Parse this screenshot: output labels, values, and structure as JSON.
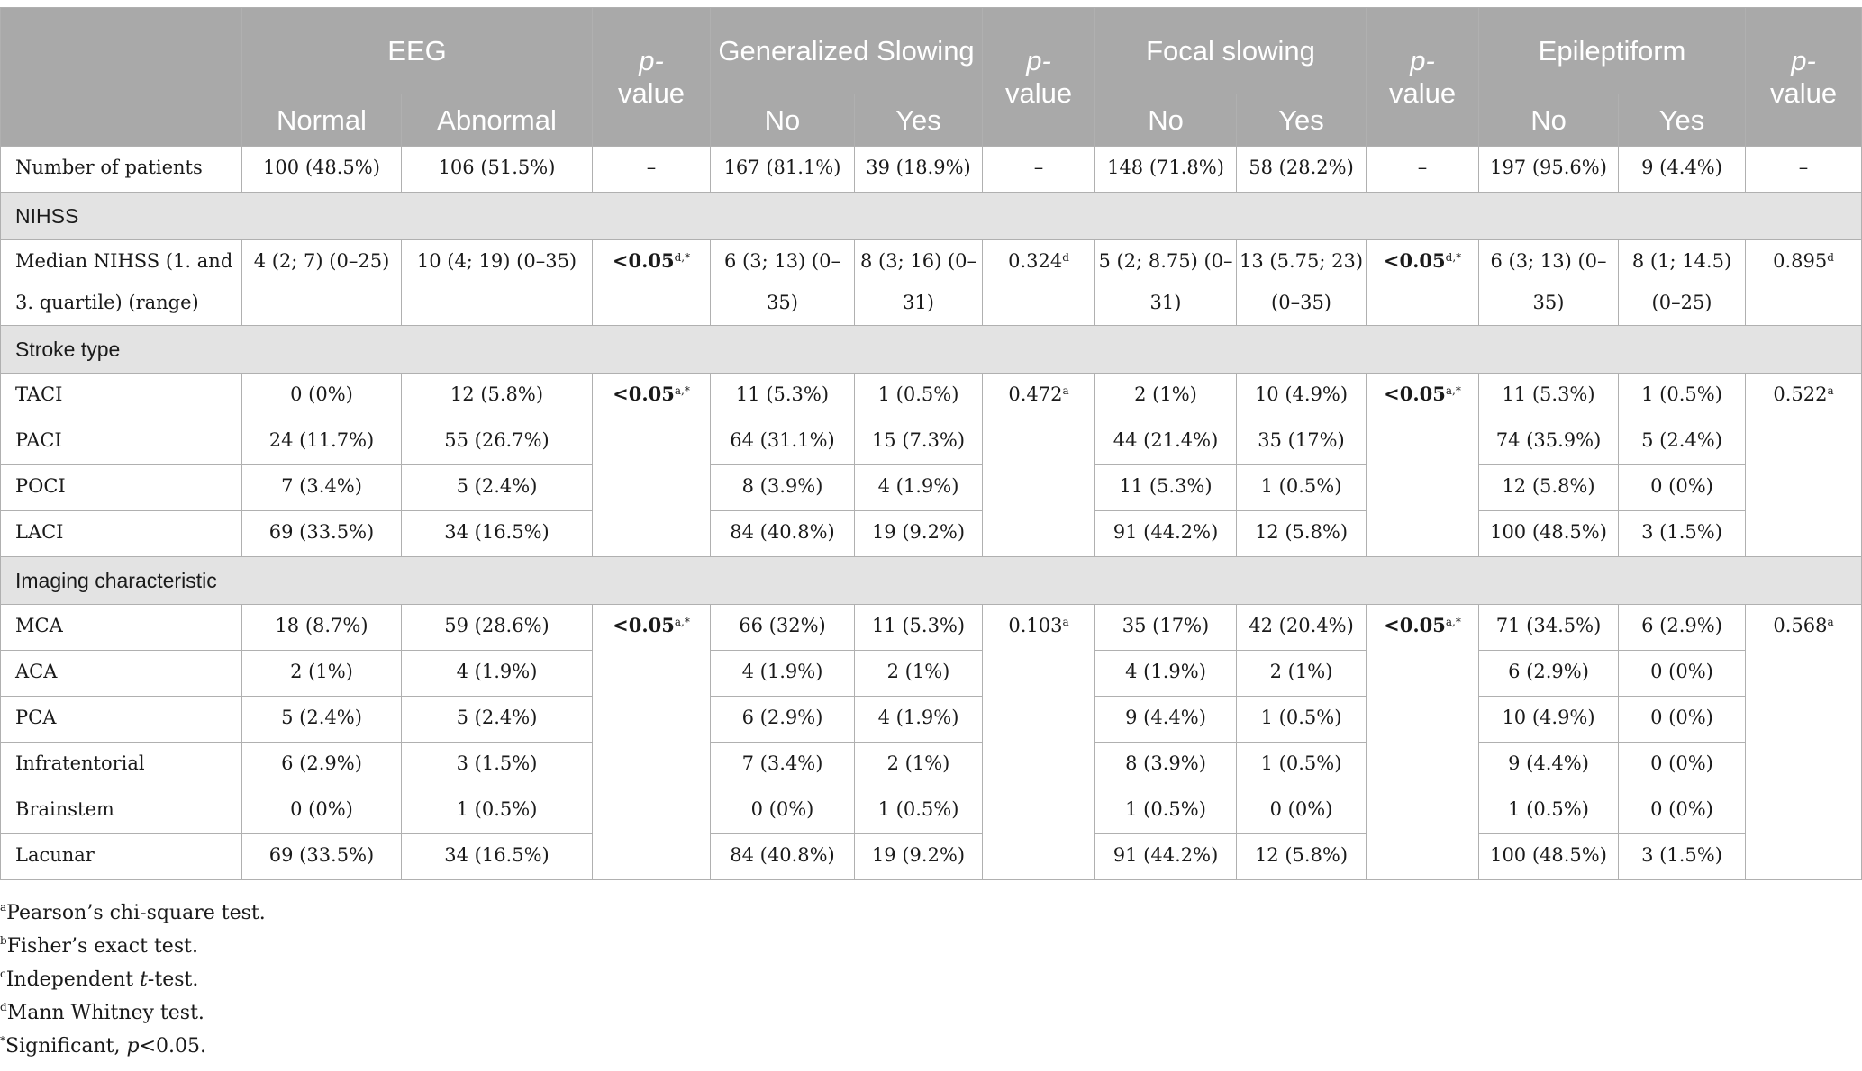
{
  "header": {
    "eeg": "EEG",
    "normal": "Normal",
    "abnormal": "Abnormal",
    "p_label": "p-",
    "p_value": "value",
    "generalized_slowing": "Generalized Slowing",
    "focal_slowing": "Focal slowing",
    "epileptiform": "Epileptiform",
    "no": "No",
    "yes": "Yes"
  },
  "patients": {
    "label": "Number of patients",
    "cells": [
      "100 (48.5%)",
      "106 (51.5%)",
      "–",
      "167 (81.1%)",
      "39 (18.9%)",
      "–",
      "148 (71.8%)",
      "58 (28.2%)",
      "–",
      "197 (95.6%)",
      "9 (4.4%)",
      "–"
    ]
  },
  "nihss": {
    "section": "NIHSS",
    "label": "Median NIHSS (1. and 3. quartile) (range)",
    "eeg_normal": "4 (2; 7) (0–25)",
    "eeg_abnormal": "10 (4; 19) (0–35)",
    "p_eeg": "<0.05",
    "p_eeg_sup": "d,*",
    "gs_no": "6 (3; 13) (0–35)",
    "gs_yes": "8 (3; 16) (0–31)",
    "p_gs": "0.324",
    "p_gs_sup": "d",
    "fs_no": "5 (2; 8.75) (0–31)",
    "fs_yes": "13 (5.75; 23) (0–35)",
    "p_fs": "<0.05",
    "p_fs_sup": "d,*",
    "ep_no": "6 (3; 13) (0–35)",
    "ep_yes": "8 (1; 14.5) (0–25)",
    "p_ep": "0.895",
    "p_ep_sup": "d"
  },
  "stroke": {
    "section": "Stroke type",
    "p_eeg": "<0.05",
    "p_eeg_sup": "a,*",
    "p_gs": "0.472",
    "p_gs_sup": "a",
    "p_fs": "<0.05",
    "p_fs_sup": "a,*",
    "p_ep": "0.522",
    "p_ep_sup": "a",
    "rows": [
      {
        "label": "TACI",
        "v": [
          "0 (0%)",
          "12 (5.8%)",
          "11 (5.3%)",
          "1 (0.5%)",
          "2 (1%)",
          "10 (4.9%)",
          "11 (5.3%)",
          "1 (0.5%)"
        ]
      },
      {
        "label": "PACI",
        "v": [
          "24 (11.7%)",
          "55 (26.7%)",
          "64 (31.1%)",
          "15 (7.3%)",
          "44 (21.4%)",
          "35 (17%)",
          "74 (35.9%)",
          "5 (2.4%)"
        ]
      },
      {
        "label": "POCI",
        "v": [
          "7 (3.4%)",
          "5 (2.4%)",
          "8 (3.9%)",
          "4 (1.9%)",
          "11 (5.3%)",
          "1 (0.5%)",
          "12 (5.8%)",
          "0 (0%)"
        ]
      },
      {
        "label": "LACI",
        "v": [
          "69 (33.5%)",
          "34 (16.5%)",
          "84 (40.8%)",
          "19 (9.2%)",
          "91 (44.2%)",
          "12 (5.8%)",
          "100 (48.5%)",
          "3 (1.5%)"
        ]
      }
    ]
  },
  "imaging": {
    "section": "Imaging characteristic",
    "p_eeg": "<0.05",
    "p_eeg_sup": "a,*",
    "p_gs": "0.103",
    "p_gs_sup": "a",
    "p_fs": "<0.05",
    "p_fs_sup": "a,*",
    "p_ep": "0.568",
    "p_ep_sup": "a",
    "rows": [
      {
        "label": "MCA",
        "v": [
          "18 (8.7%)",
          "59 (28.6%)",
          "66 (32%)",
          "11 (5.3%)",
          "35 (17%)",
          "42 (20.4%)",
          "71 (34.5%)",
          "6 (2.9%)"
        ]
      },
      {
        "label": "ACA",
        "v": [
          "2 (1%)",
          "4 (1.9%)",
          "4 (1.9%)",
          "2 (1%)",
          "4 (1.9%)",
          "2 (1%)",
          "6 (2.9%)",
          "0 (0%)"
        ]
      },
      {
        "label": "PCA",
        "v": [
          "5 (2.4%)",
          "5 (2.4%)",
          "6 (2.9%)",
          "4 (1.9%)",
          "9 (4.4%)",
          "1 (0.5%)",
          "10 (4.9%)",
          "0 (0%)"
        ]
      },
      {
        "label": "Infratentorial",
        "v": [
          "6 (2.9%)",
          "3 (1.5%)",
          "7 (3.4%)",
          "2 (1%)",
          "8 (3.9%)",
          "1 (0.5%)",
          "9 (4.4%)",
          "0 (0%)"
        ]
      },
      {
        "label": "Brainstem",
        "v": [
          "0 (0%)",
          "1 (0.5%)",
          "0 (0%)",
          "1 (0.5%)",
          "1 (0.5%)",
          "0 (0%)",
          "1 (0.5%)",
          "0 (0%)"
        ]
      },
      {
        "label": "Lacunar",
        "v": [
          "69 (33.5%)",
          "34 (16.5%)",
          "84 (40.8%)",
          "19 (9.2%)",
          "91 (44.2%)",
          "12 (5.8%)",
          "100 (48.5%)",
          "3 (1.5%)"
        ]
      }
    ]
  },
  "footnotes": [
    {
      "mark": "a",
      "text": "Pearson’s chi-square test."
    },
    {
      "mark": "b",
      "text": "Fisher’s exact test."
    },
    {
      "mark": "c",
      "pre": "Independent ",
      "em": "t",
      "post": "-test."
    },
    {
      "mark": "d",
      "text": "Mann Whitney test."
    },
    {
      "mark": "*",
      "pre": "Significant, ",
      "em": "p",
      "post": "<0.05."
    }
  ]
}
